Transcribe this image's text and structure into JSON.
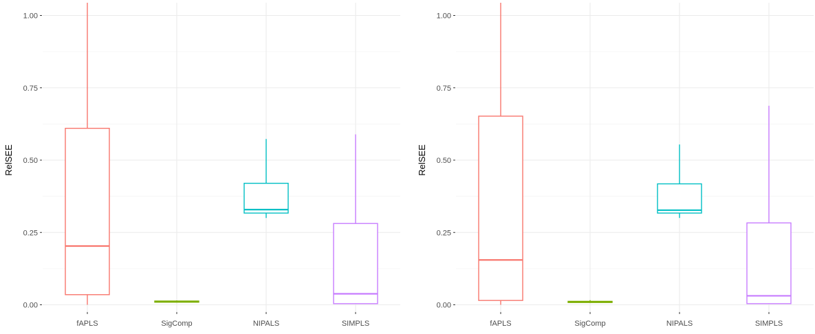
{
  "chart_data": [
    {
      "type": "boxplot",
      "ylabel": "RelSEE",
      "xlabel": "",
      "ylim": [
        0,
        1.05
      ],
      "yticks": [
        0,
        0.25,
        0.5,
        0.75,
        1.0
      ],
      "ytick_labels": [
        "0.00",
        "0.25",
        "0.50",
        "0.75",
        "1.00"
      ],
      "grid": true,
      "categories": [
        "fAPLS",
        "SigComp",
        "NIPALS",
        "SIMPLS"
      ],
      "boxes": [
        {
          "category": "fAPLS",
          "color": "#F8766D",
          "whisker_low": 0.0,
          "q1": 0.035,
          "median": 0.203,
          "q3": 0.61,
          "whisker_high": 1.05
        },
        {
          "category": "SigComp",
          "color": "#7CAE00",
          "whisker_low": 0.008,
          "q1": 0.009,
          "median": 0.011,
          "q3": 0.013,
          "whisker_high": 0.015
        },
        {
          "category": "NIPALS",
          "color": "#00BFC4",
          "whisker_low": 0.3,
          "q1": 0.317,
          "median": 0.329,
          "q3": 0.42,
          "whisker_high": 0.573
        },
        {
          "category": "SIMPLS",
          "color": "#C77CFF",
          "whisker_low": 0.004,
          "q1": 0.004,
          "median": 0.038,
          "q3": 0.281,
          "whisker_high": 0.589
        }
      ]
    },
    {
      "type": "boxplot",
      "ylabel": "RelSEE",
      "xlabel": "",
      "ylim": [
        0,
        1.05
      ],
      "yticks": [
        0,
        0.25,
        0.5,
        0.75,
        1.0
      ],
      "ytick_labels": [
        "0.00",
        "0.25",
        "0.50",
        "0.75",
        "1.00"
      ],
      "grid": true,
      "categories": [
        "fAPLS",
        "SigComp",
        "NIPALS",
        "SIMPLS"
      ],
      "boxes": [
        {
          "category": "fAPLS",
          "color": "#F8766D",
          "whisker_low": 0.0,
          "q1": 0.015,
          "median": 0.155,
          "q3": 0.652,
          "whisker_high": 1.05
        },
        {
          "category": "SigComp",
          "color": "#7CAE00",
          "whisker_low": 0.007,
          "q1": 0.008,
          "median": 0.01,
          "q3": 0.012,
          "whisker_high": 0.016
        },
        {
          "category": "NIPALS",
          "color": "#00BFC4",
          "whisker_low": 0.3,
          "q1": 0.317,
          "median": 0.327,
          "q3": 0.418,
          "whisker_high": 0.554
        },
        {
          "category": "SIMPLS",
          "color": "#C77CFF",
          "whisker_low": 0.004,
          "q1": 0.004,
          "median": 0.031,
          "q3": 0.283,
          "whisker_high": 0.688
        }
      ]
    }
  ],
  "style": {
    "grid_major_color": "#ebebeb",
    "grid_minor_color": "#f4f4f4",
    "tick_mark_color": "#333333",
    "background": "#ffffff"
  }
}
